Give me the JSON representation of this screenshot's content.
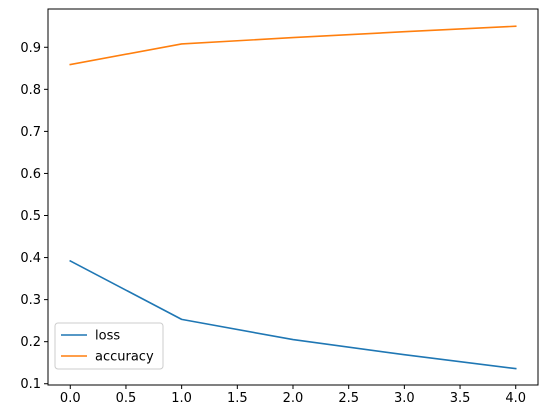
{
  "chart_data": {
    "type": "line",
    "title": "",
    "xlabel": "",
    "ylabel": "",
    "x": [
      0,
      1,
      2,
      3,
      4
    ],
    "series": [
      {
        "name": "loss",
        "values": [
          0.392,
          0.253,
          0.205,
          0.169,
          0.136
        ],
        "color": "#1f77b4"
      },
      {
        "name": "accuracy",
        "values": [
          0.859,
          0.908,
          0.923,
          0.937,
          0.95
        ],
        "color": "#ff7f0e"
      }
    ],
    "xlim": [
      -0.2,
      4.2
    ],
    "ylim": [
      0.097,
      0.991
    ],
    "xticks": [
      0.0,
      0.5,
      1.0,
      1.5,
      2.0,
      2.5,
      3.0,
      3.5,
      4.0
    ],
    "xtick_labels": [
      "0.0",
      "0.5",
      "1.0",
      "1.5",
      "2.0",
      "2.5",
      "3.0",
      "3.5",
      "4.0"
    ],
    "yticks": [
      0.1,
      0.2,
      0.3,
      0.4,
      0.5,
      0.6,
      0.7,
      0.8,
      0.9
    ],
    "ytick_labels": [
      "0.1",
      "0.2",
      "0.3",
      "0.4",
      "0.5",
      "0.6",
      "0.7",
      "0.8",
      "0.9"
    ],
    "grid": false,
    "legend_position": "lower-left"
  }
}
